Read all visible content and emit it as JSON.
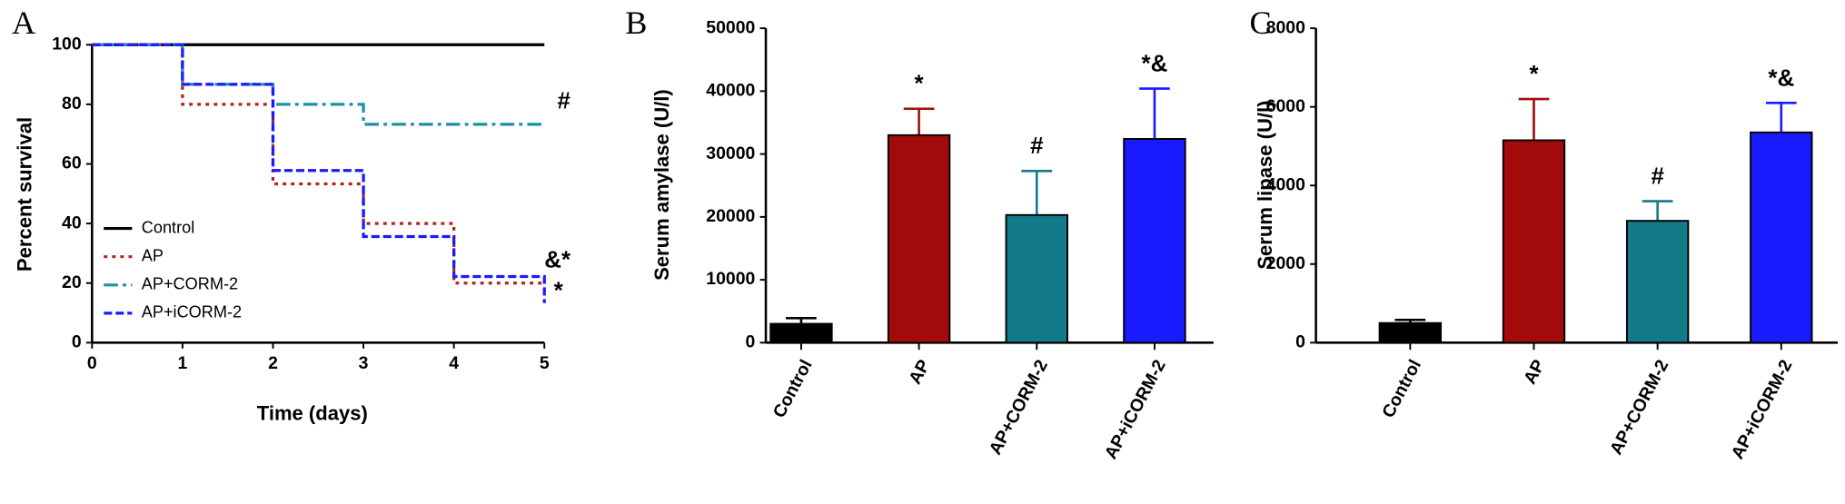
{
  "chart_data": [
    {
      "type": "line",
      "panel_label": "A",
      "step": true,
      "x_label": "Time (days)",
      "y_label": "Percent survival",
      "x": [
        0,
        1,
        2,
        3,
        4,
        5
      ],
      "xlim": [
        0,
        5
      ],
      "xticks": [
        0,
        1,
        2,
        3,
        4,
        5
      ],
      "ylim": [
        0,
        100
      ],
      "yticks": [
        0,
        20,
        40,
        60,
        80,
        100
      ],
      "series": [
        {
          "name": "Control",
          "color": "#000000",
          "linestyle": "solid",
          "values": [
            100,
            100,
            100,
            100,
            100,
            100
          ]
        },
        {
          "name": "AP",
          "color": "#b22222",
          "linestyle": "dotted",
          "values": [
            100,
            80,
            53.3,
            40,
            20,
            20
          ]
        },
        {
          "name": "AP+CORM-2",
          "color": "#1f8fa6",
          "linestyle": "dashdot",
          "values": [
            100,
            86.7,
            80,
            73.3,
            73.3,
            73.3
          ]
        },
        {
          "name": "AP+iCORM-2",
          "color": "#1a1aff",
          "linestyle": "dashed",
          "values": [
            100,
            86.7,
            57.8,
            35.6,
            22.2,
            13.3
          ]
        }
      ],
      "annotations": [
        "#",
        "&*",
        "*"
      ]
    },
    {
      "type": "bar",
      "panel_label": "B",
      "y_label": "Serum amylase (U/l)",
      "categories": [
        "Control",
        "AP",
        "AP+CORM-2",
        "AP+iCORM-2"
      ],
      "values": [
        3000,
        33000,
        20300,
        32400
      ],
      "errors": [
        900,
        4200,
        7000,
        8000
      ],
      "colors": [
        "#000000",
        "#a30b0b",
        "#137a8a",
        "#1a1aff"
      ],
      "annotations": [
        null,
        "*",
        "#",
        "*&"
      ],
      "ylim": [
        0,
        50000
      ],
      "yticks": [
        0,
        10000,
        20000,
        30000,
        40000,
        50000
      ]
    },
    {
      "type": "bar",
      "panel_label": "C",
      "y_label": "Serum lipase (U/l)",
      "categories": [
        "Control",
        "AP",
        "AP+CORM-2",
        "AP+iCORM-2"
      ],
      "values": [
        500,
        5150,
        3100,
        5350
      ],
      "errors": [
        80,
        1050,
        500,
        750
      ],
      "colors": [
        "#000000",
        "#a30b0b",
        "#137a8a",
        "#1a1aff"
      ],
      "annotations": [
        null,
        "*",
        "#",
        "*&"
      ],
      "ylim": [
        0,
        8000
      ],
      "yticks": [
        0,
        2000,
        4000,
        6000,
        8000
      ]
    }
  ]
}
